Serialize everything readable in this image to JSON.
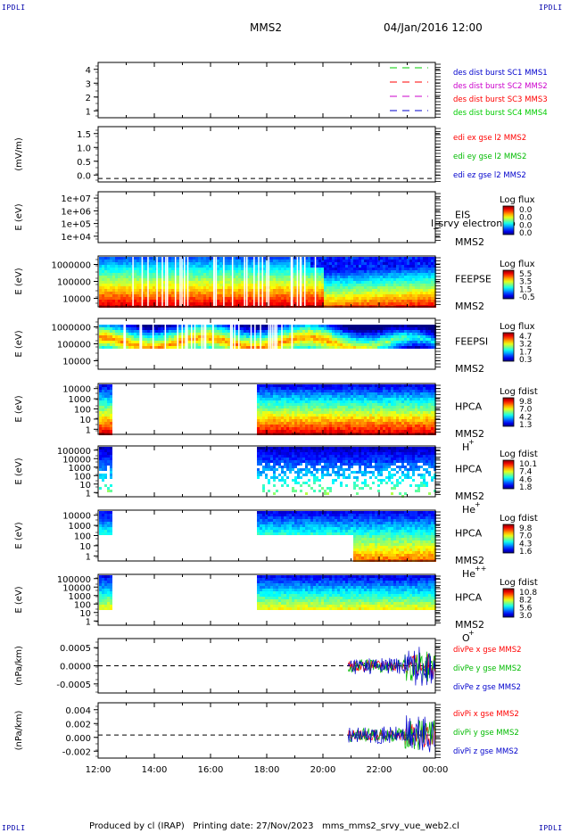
{
  "header": {
    "left_tag": "IPDLI",
    "right_tag": "IPDLI",
    "spacecraft": "MMS2",
    "datetime": "04/Jan/2016 12:00"
  },
  "footer": {
    "left_tag": "IPDLI",
    "right_tag": "IPDLI",
    "text": "Produced by cl (IRAP)   Printing date: 27/Nov/2023   mms_mms2_srvy_vue_web2.cl"
  },
  "chart_data": [
    {
      "type": "line",
      "ylim": [
        0.5,
        4.5
      ],
      "yticks": [
        "1",
        "2",
        "3",
        "4"
      ],
      "ylabel": "",
      "legend": [
        {
          "label": "des dist burst SC1 MMS1",
          "color": "#0000cc",
          "line_color": "#00cc00"
        },
        {
          "label": "des dist burst SC2 MMS2",
          "color": "#cc00cc",
          "line_color": "#ff0000"
        },
        {
          "label": "des dist burst SC3 MMS3",
          "color": "#ff0000",
          "line_color": "#cc00cc"
        },
        {
          "label": "des dist burst SC4 MMS4",
          "color": "#00cc00",
          "line_color": "#0000cc"
        }
      ]
    },
    {
      "type": "line",
      "ylim": [
        -0.1,
        1.5
      ],
      "yticks": [
        "0.0",
        "0.5",
        "1.0",
        "1.5"
      ],
      "ylabel": "(mV/m)",
      "legend": [
        {
          "label": "edi ex gse l2 MMS2",
          "color": "#ff0000"
        },
        {
          "label": "edi ey gse l2 MMS2",
          "color": "#00bb00"
        },
        {
          "label": "edi ez gse l2 MMS2",
          "color": "#0000cc"
        }
      ]
    },
    {
      "type": "heatmap",
      "yticks": [
        "1e+04",
        "1e+05",
        "1e+06",
        "1e+07"
      ],
      "ylabel": "E (eV)",
      "instrument": "EIS",
      "spacecraft": "MMS2",
      "species": "",
      "overlay": "l_srvy electron to",
      "cbar_title": "Log flux",
      "cbar_ticks": [
        "0.0",
        "0.0",
        "0.0",
        "0.0"
      ]
    },
    {
      "type": "heatmap",
      "yticks": [
        "10000",
        "100000",
        "1000000"
      ],
      "ylabel": "E (eV)",
      "instrument": "FEEPSE",
      "spacecraft": "MMS2",
      "species": "",
      "cbar_title": "Log flux",
      "cbar_ticks": [
        "5.5",
        "3.5",
        "1.5",
        "-0.5"
      ]
    },
    {
      "type": "heatmap",
      "yticks": [
        "10000",
        "100000",
        "1000000"
      ],
      "ylabel": "E (eV)",
      "instrument": "FEEPSI",
      "spacecraft": "MMS2",
      "species": "",
      "cbar_title": "Log flux",
      "cbar_ticks": [
        "4.7",
        "3.2",
        "1.7",
        "0.3"
      ]
    },
    {
      "type": "heatmap",
      "yticks": [
        "1",
        "10",
        "100",
        "1000",
        "10000"
      ],
      "ylabel": "E (eV)",
      "instrument": "HPCA",
      "spacecraft": "MMS2",
      "species": "H",
      "species_sup": "+",
      "cbar_title": "Log fdist",
      "cbar_ticks": [
        "9.8",
        "7.0",
        "4.2",
        "1.3"
      ]
    },
    {
      "type": "heatmap",
      "yticks": [
        "1",
        "10",
        "100",
        "1000",
        "10000",
        "100000"
      ],
      "ylabel": "E (eV)",
      "instrument": "HPCA",
      "spacecraft": "MMS2",
      "species": "He",
      "species_sup": "+",
      "cbar_title": "Log fdist",
      "cbar_ticks": [
        "10.1",
        "7.4",
        "4.6",
        "1.8"
      ]
    },
    {
      "type": "heatmap",
      "yticks": [
        "1",
        "10",
        "100",
        "1000",
        "10000"
      ],
      "ylabel": "E (eV)",
      "instrument": "HPCA",
      "spacecraft": "MMS2",
      "species": "He",
      "species_sup": "++",
      "cbar_title": "Log fdist",
      "cbar_ticks": [
        "9.8",
        "7.0",
        "4.3",
        "1.6"
      ]
    },
    {
      "type": "heatmap",
      "yticks": [
        "1",
        "10",
        "100",
        "1000",
        "10000",
        "100000"
      ],
      "ylabel": "E (eV)",
      "instrument": "HPCA",
      "spacecraft": "MMS2",
      "species": "O",
      "species_sup": "+",
      "cbar_title": "Log fdist",
      "cbar_ticks": [
        "10.8",
        "8.2",
        "5.6",
        "3.0"
      ]
    },
    {
      "type": "line",
      "ylim": [
        -0.0008,
        0.0008
      ],
      "yticks": [
        "-0.0005",
        "0.0000",
        "0.0005"
      ],
      "ylabel": "(nPa/km)",
      "legend": [
        {
          "label": "divPe x gse MMS2",
          "color": "#ff0000"
        },
        {
          "label": "divPe y gse MMS2",
          "color": "#00bb00"
        },
        {
          "label": "divPe z gse MMS2",
          "color": "#0000cc"
        }
      ]
    },
    {
      "type": "line",
      "ylim": [
        -0.003,
        0.0042
      ],
      "yticks": [
        "-0.002",
        "0.000",
        "0.002",
        "0.004"
      ],
      "ylabel": "(nPa/km)",
      "legend": [
        {
          "label": "divPi x gse MMS2",
          "color": "#ff0000"
        },
        {
          "label": "divPi y gse MMS2",
          "color": "#00bb00"
        },
        {
          "label": "divPi z gse MMS2",
          "color": "#0000cc"
        }
      ]
    }
  ],
  "xaxis": {
    "ticks": [
      "12:00",
      "14:00",
      "16:00",
      "18:00",
      "20:00",
      "22:00",
      "00:00"
    ],
    "range_hours": [
      12,
      24
    ]
  }
}
